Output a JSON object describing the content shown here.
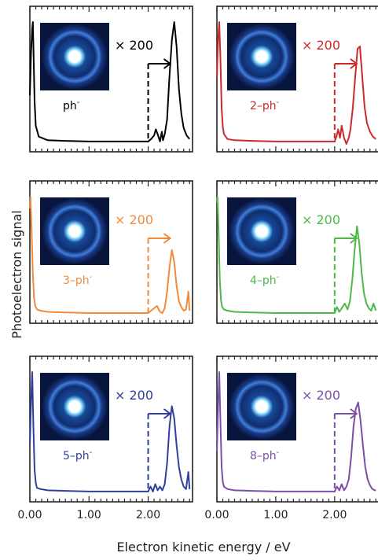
{
  "chart_data": {
    "type": "line",
    "xlabel": "Electron kinetic energy / eV",
    "ylabel": "Photoelectron signal",
    "xlim": [
      0.0,
      2.75
    ],
    "x_tick_labels": [
      "0.00",
      "1.00",
      "2.00"
    ],
    "x_ticks": [
      0,
      1,
      2
    ],
    "scale_break_x": 2.0,
    "layout": "3 rows x 2 columns",
    "panels": [
      {
        "species": "ph",
        "species_superscript": "-",
        "color": "#000000",
        "multiplier": "× 200",
        "has_vmi_image": true,
        "x": [
          0.0,
          0.02,
          0.04,
          0.05,
          0.06,
          0.08,
          0.1,
          0.15,
          0.3,
          0.6,
          1.0,
          1.5,
          1.98,
          1.99,
          2.0,
          2.05,
          2.1,
          2.13,
          2.16,
          2.2,
          2.23,
          2.25,
          2.28,
          2.32,
          2.36,
          2.4,
          2.44,
          2.48,
          2.52,
          2.56,
          2.6,
          2.65,
          2.7
        ],
        "y": [
          0.4,
          0.75,
          0.95,
          1.0,
          0.8,
          0.35,
          0.15,
          0.06,
          0.03,
          0.025,
          0.02,
          0.02,
          0.02,
          0.02,
          0.02,
          0.04,
          0.07,
          0.12,
          0.08,
          0.02,
          0.1,
          0.03,
          0.08,
          0.2,
          0.55,
          0.85,
          1.0,
          0.8,
          0.45,
          0.25,
          0.13,
          0.07,
          0.04
        ]
      },
      {
        "species": "2–ph",
        "species_superscript": "-",
        "color": "#cc2a2a",
        "multiplier": "× 200",
        "has_vmi_image": true,
        "x": [
          0.0,
          0.02,
          0.04,
          0.06,
          0.08,
          0.1,
          0.12,
          0.18,
          0.3,
          0.6,
          1.0,
          1.5,
          1.98,
          2.0,
          2.03,
          2.06,
          2.09,
          2.12,
          2.16,
          2.2,
          2.24,
          2.27,
          2.31,
          2.35,
          2.39,
          2.43,
          2.47,
          2.51,
          2.55,
          2.6,
          2.65,
          2.7
        ],
        "y": [
          0.55,
          0.85,
          1.0,
          0.7,
          0.3,
          0.14,
          0.08,
          0.04,
          0.03,
          0.025,
          0.02,
          0.02,
          0.02,
          0.02,
          0.06,
          0.12,
          0.05,
          0.15,
          0.05,
          0.0,
          0.05,
          0.12,
          0.3,
          0.55,
          0.78,
          0.8,
          0.55,
          0.3,
          0.17,
          0.1,
          0.06,
          0.04
        ]
      },
      {
        "species": "3–ph",
        "species_superscript": "-",
        "color": "#f08a3c",
        "multiplier": "× 200",
        "has_vmi_image": true,
        "x": [
          0.0,
          0.01,
          0.03,
          0.05,
          0.07,
          0.09,
          0.12,
          0.18,
          0.3,
          0.6,
          1.0,
          1.5,
          1.98,
          2.0,
          2.05,
          2.1,
          2.15,
          2.2,
          2.24,
          2.28,
          2.32,
          2.36,
          2.4,
          2.44,
          2.48,
          2.52,
          2.56,
          2.6,
          2.64,
          2.68,
          2.7
        ],
        "y": [
          0.9,
          1.0,
          0.7,
          0.35,
          0.15,
          0.08,
          0.05,
          0.04,
          0.03,
          0.025,
          0.02,
          0.02,
          0.02,
          0.02,
          0.04,
          0.06,
          0.08,
          0.03,
          0.02,
          0.06,
          0.2,
          0.4,
          0.55,
          0.45,
          0.25,
          0.12,
          0.07,
          0.04,
          0.05,
          0.2,
          0.04
        ]
      },
      {
        "species": "4–ph",
        "species_superscript": "-",
        "color": "#4cb847",
        "multiplier": "× 200",
        "has_vmi_image": true,
        "x": [
          0.0,
          0.01,
          0.03,
          0.05,
          0.07,
          0.09,
          0.12,
          0.18,
          0.3,
          0.6,
          1.0,
          1.5,
          1.98,
          2.0,
          2.04,
          2.08,
          2.12,
          2.17,
          2.22,
          2.26,
          2.3,
          2.34,
          2.38,
          2.42,
          2.46,
          2.5,
          2.54,
          2.58,
          2.62,
          2.66,
          2.7
        ],
        "y": [
          0.95,
          1.0,
          0.7,
          0.3,
          0.13,
          0.07,
          0.05,
          0.04,
          0.03,
          0.025,
          0.02,
          0.02,
          0.02,
          0.02,
          0.07,
          0.03,
          0.06,
          0.1,
          0.05,
          0.12,
          0.3,
          0.55,
          0.75,
          0.6,
          0.35,
          0.18,
          0.1,
          0.06,
          0.04,
          0.1,
          0.04
        ]
      },
      {
        "species": "5–ph",
        "species_superscript": "-",
        "color": "#2e3f9e",
        "multiplier": "× 200",
        "has_vmi_image": true,
        "x": [
          0.0,
          0.02,
          0.04,
          0.06,
          0.08,
          0.1,
          0.12,
          0.18,
          0.3,
          0.6,
          1.0,
          1.5,
          1.98,
          2.0,
          2.04,
          2.08,
          2.12,
          2.16,
          2.2,
          2.24,
          2.28,
          2.32,
          2.36,
          2.4,
          2.44,
          2.48,
          2.52,
          2.56,
          2.6,
          2.64,
          2.68,
          2.7
        ],
        "y": [
          0.4,
          0.75,
          1.0,
          0.55,
          0.2,
          0.09,
          0.05,
          0.04,
          0.03,
          0.025,
          0.02,
          0.02,
          0.02,
          0.02,
          0.06,
          0.02,
          0.08,
          0.03,
          0.06,
          0.03,
          0.08,
          0.25,
          0.55,
          0.72,
          0.62,
          0.4,
          0.22,
          0.12,
          0.06,
          0.04,
          0.18,
          0.04
        ]
      },
      {
        "species": "8–ph",
        "species_superscript": "-",
        "color": "#7b4fa8",
        "multiplier": "× 200",
        "has_vmi_image": true,
        "x": [
          0.0,
          0.02,
          0.04,
          0.06,
          0.08,
          0.1,
          0.12,
          0.18,
          0.3,
          0.6,
          1.0,
          1.5,
          1.98,
          2.0,
          2.04,
          2.08,
          2.12,
          2.16,
          2.2,
          2.24,
          2.28,
          2.32,
          2.36,
          2.4,
          2.44,
          2.48,
          2.52,
          2.56,
          2.6,
          2.64,
          2.68,
          2.7
        ],
        "y": [
          0.35,
          0.7,
          1.0,
          0.6,
          0.22,
          0.1,
          0.06,
          0.04,
          0.03,
          0.025,
          0.02,
          0.02,
          0.02,
          0.02,
          0.06,
          0.03,
          0.08,
          0.03,
          0.06,
          0.12,
          0.3,
          0.55,
          0.7,
          0.75,
          0.6,
          0.4,
          0.22,
          0.12,
          0.07,
          0.04,
          0.03,
          0.03
        ]
      }
    ]
  }
}
